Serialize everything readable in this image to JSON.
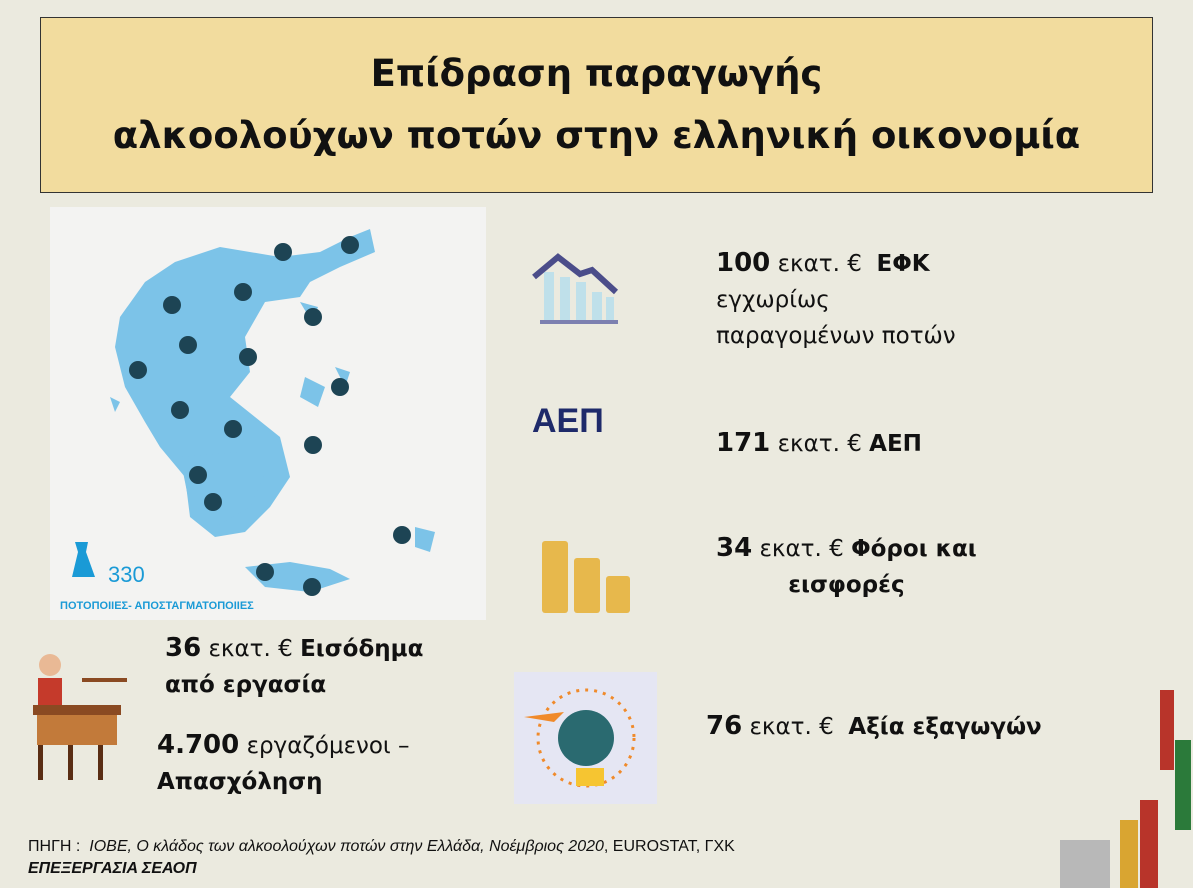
{
  "title": {
    "line1": "Επίδραση παραγωγής",
    "line2": "αλκοολούχων ποτών στην ελληνική οικονομία"
  },
  "map": {
    "count": "330",
    "label": "ΠΟΤΟΠΟΙΙΕΣ- ΑΠΟΣΤΑΓΜΑΤΟΠΟΙΙΕΣ",
    "land_color": "#7cc3e8",
    "marker_color": "#1d4454",
    "accent": "#1a9ad6"
  },
  "stats": {
    "efk": {
      "num": "100",
      "unit": "εκατ. €",
      "label": "ΕΦΚ",
      "line2": "εγχωρίως",
      "line3": "παραγομένων ποτών",
      "icon": "declining-chart-icon"
    },
    "gdp": {
      "num": "171",
      "unit": "εκατ. €",
      "label": "ΑΕΠ",
      "icon": "gdp-icon",
      "icon_text": "ΑΕΠ"
    },
    "taxes": {
      "num": "34",
      "unit": "εκατ. €",
      "label": "Φόροι και",
      "line2": "εισφορές",
      "icon": "coins-icon"
    },
    "exports": {
      "num": "76",
      "unit": "εκατ. €",
      "label": "Αξία εξαγωγών",
      "icon": "globe-trade-icon"
    },
    "income": {
      "num": "36",
      "unit": "εκατ. €",
      "label": "Εισόδημα",
      "line2": "από εργασία",
      "icon": "bartender-icon"
    },
    "employment": {
      "num": "4.700",
      "label": "εργαζόμενοι –",
      "line2": "Απασχόληση"
    }
  },
  "source": {
    "prefix": "ΠΗΓΗ :",
    "italic": "ΙΟΒΕ, Ο κλάδος των αλκοολούχων ποτών στην Ελλάδα, Νοέμβριος 2020",
    "suffix": ", EUROSTAT, ΓΧΚ",
    "processing": "ΕΠΕΞΕΡΓΑΣΙΑ ΣΕΑΟΠ"
  }
}
